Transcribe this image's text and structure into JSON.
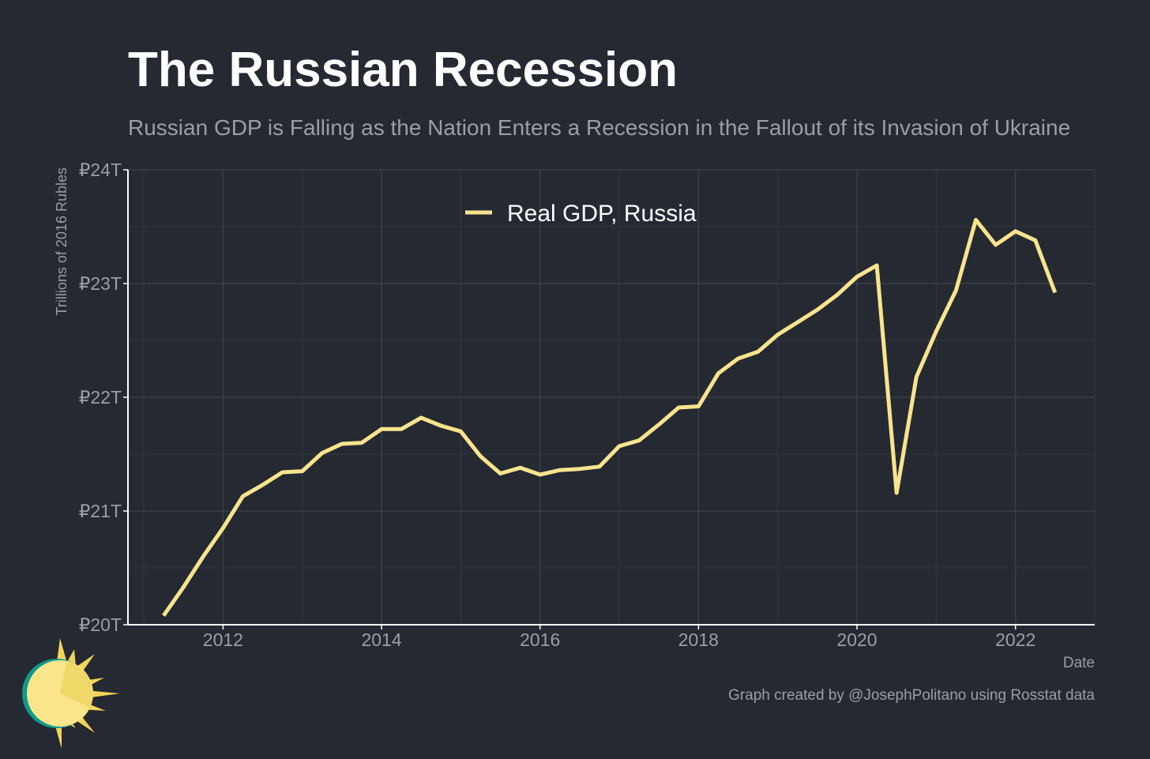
{
  "title": "The Russian Recession",
  "subtitle": "Russian GDP is Falling as the Nation Enters a Recession in the Fallout of its Invasion of Ukraine",
  "credit": "Graph created by @JosephPolitano using Rosstat data",
  "colors": {
    "background": "#252932",
    "line": "#f9e48d",
    "grid": "#3e434d",
    "text": "#9a9ea6"
  },
  "chart_data": {
    "type": "line",
    "xlabel": "Date",
    "ylabel": "Trillions of 2016 Rubles",
    "xlim": [
      2010.8,
      2023.0
    ],
    "ylim": [
      20,
      24
    ],
    "x_ticks": [
      2012,
      2014,
      2016,
      2018,
      2020,
      2022
    ],
    "x_tick_labels": [
      "2012",
      "2014",
      "2016",
      "2018",
      "2020",
      "2022"
    ],
    "y_ticks": [
      20,
      21,
      22,
      23,
      24
    ],
    "y_tick_labels": [
      "₽20T",
      "₽21T",
      "₽22T",
      "₽23T",
      "₽24T"
    ],
    "grid": true,
    "legend_position": "top-center",
    "series": [
      {
        "name": "Real GDP, Russia",
        "color": "#f9e48d",
        "x": [
          2011.25,
          2011.5,
          2011.75,
          2012.0,
          2012.25,
          2012.5,
          2012.75,
          2013.0,
          2013.25,
          2013.5,
          2013.75,
          2014.0,
          2014.25,
          2014.5,
          2014.75,
          2015.0,
          2015.25,
          2015.5,
          2015.75,
          2016.0,
          2016.25,
          2016.5,
          2016.75,
          2017.0,
          2017.25,
          2017.5,
          2017.75,
          2018.0,
          2018.25,
          2018.5,
          2018.75,
          2019.0,
          2019.25,
          2019.5,
          2019.75,
          2020.0,
          2020.25,
          2020.5,
          2020.75,
          2021.0,
          2021.25,
          2021.5,
          2021.75,
          2022.0,
          2022.25,
          2022.5
        ],
        "values": [
          20.08,
          20.33,
          20.6,
          20.85,
          21.13,
          21.23,
          21.34,
          21.35,
          21.51,
          21.59,
          21.6,
          21.72,
          21.72,
          21.82,
          21.75,
          21.7,
          21.48,
          21.33,
          21.38,
          21.32,
          21.36,
          21.37,
          21.39,
          21.57,
          21.62,
          21.76,
          21.91,
          21.92,
          22.21,
          22.34,
          22.4,
          22.55,
          22.66,
          22.77,
          22.9,
          23.06,
          23.16,
          21.16,
          22.18,
          22.58,
          22.94,
          23.56,
          23.34,
          23.46,
          23.38,
          22.92
        ]
      }
    ]
  }
}
